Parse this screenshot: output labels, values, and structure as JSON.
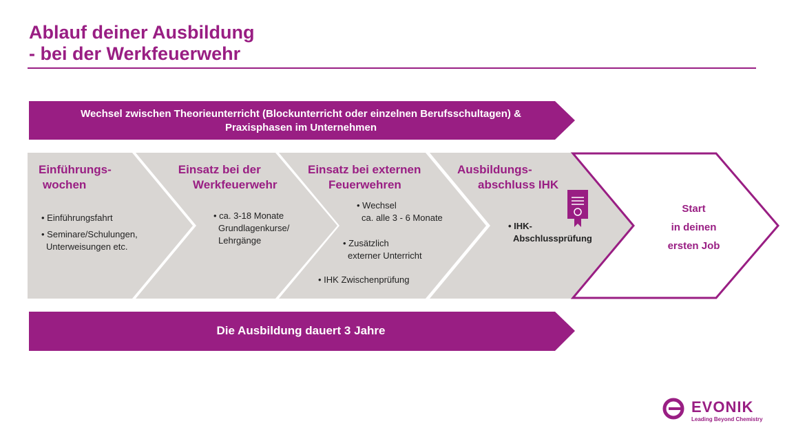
{
  "title": {
    "line1": "Ablauf deiner Ausbildung",
    "line2": "- bei der Werkfeuerwehr"
  },
  "colors": {
    "accent": "#991e83",
    "chevron_fill": "#d9d6d3"
  },
  "top_banner": {
    "line1": "Wechsel zwischen Theorieunterricht (Blockunterricht oder einzelnen Berufsschultagen) &",
    "line2": "Praxisphasen im Unternehmen"
  },
  "steps": [
    {
      "h1": "Einführungs-",
      "h2": "wochen",
      "items": [
        "• Einführungsfahrt",
        "• Seminare/Schulungen,",
        "Unterweisungen etc."
      ]
    },
    {
      "h1": "Einsatz bei der",
      "h2": "Werkfeuerwehr",
      "items": [
        "• ca. 3-18 Monate",
        "Grundlagenkurse/",
        "Lehrgänge"
      ]
    },
    {
      "h1": "Einsatz bei externen",
      "h2": "Feuerwehren",
      "items": [
        "• Wechsel",
        "ca. alle 3 - 6 Monate",
        "• Zusätzlich",
        "externer Unterricht",
        "• IHK Zwischenprüfung"
      ]
    },
    {
      "h1": "Ausbildungs-",
      "h2": "abschluss IHK",
      "items": [
        "• IHK-",
        "Abschlussprüfung"
      ],
      "icon": "certificate-icon"
    },
    {
      "lines": [
        "Start",
        "in deinen",
        "ersten Job"
      ]
    }
  ],
  "bottom_banner": {
    "text": "Die Ausbildung dauert 3 Jahre"
  },
  "logo": {
    "name": "EVONIK",
    "tagline": "Leading Beyond Chemistry"
  }
}
